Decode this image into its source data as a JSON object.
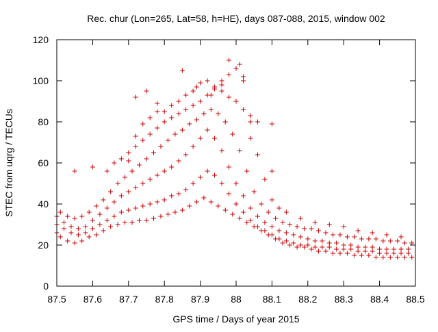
{
  "chart_data": {
    "type": "scatter",
    "title": "Rec. chur (Lon=265, Lat=58, h=HE), days 087-088, 2015, window 002",
    "xlabel": "GPS time / Days of year 2015",
    "ylabel": "STEC from uqrg / TECUs",
    "xlim": [
      87.5,
      88.5
    ],
    "ylim": [
      0,
      120
    ],
    "xticks": [
      87.5,
      87.6,
      87.7,
      87.8,
      87.9,
      88.0,
      88.1,
      88.2,
      88.3,
      88.4,
      88.5
    ],
    "xtick_labels": [
      "87.5",
      "87.6",
      "87.7",
      "87.8",
      "87.9",
      "88",
      "88.1",
      "88.2",
      "88.3",
      "88.4",
      "88.5"
    ],
    "yticks": [
      0,
      20,
      40,
      60,
      80,
      100,
      120
    ],
    "ytick_labels": [
      "0",
      "20",
      "40",
      "60",
      "80",
      "100",
      "120"
    ],
    "grid": false,
    "marker": "plus",
    "color": "#cc0000",
    "series": [
      {
        "x": [
          87.5,
          87.51,
          87.53,
          87.55,
          87.57,
          87.59,
          87.61,
          87.63,
          87.65,
          87.67,
          87.69,
          87.71,
          87.73,
          87.75,
          87.77,
          87.79,
          87.81,
          87.83,
          87.85,
          87.87,
          87.89,
          87.91,
          87.93,
          87.95,
          87.97,
          87.99,
          88.01,
          88.03,
          88.05,
          88.07,
          88.09,
          88.11,
          88.13,
          88.15,
          88.17,
          88.19,
          88.21,
          88.23,
          88.25,
          88.27,
          88.29,
          88.31,
          88.33,
          88.35,
          88.37,
          88.39,
          88.41,
          88.43,
          88.45,
          88.47,
          88.49,
          87.5,
          87.52,
          87.54,
          87.56,
          87.58,
          87.6,
          87.62,
          87.64,
          87.66,
          87.68,
          87.7,
          87.72,
          87.74,
          87.76,
          87.78,
          87.8,
          87.82,
          87.84,
          87.86,
          87.88,
          87.9,
          87.92,
          87.94,
          87.96,
          87.98,
          88.0,
          88.02,
          88.04,
          88.06,
          88.08,
          88.1,
          88.12,
          88.14,
          88.16,
          88.18,
          88.2,
          88.22,
          88.24,
          88.26,
          88.28,
          88.3,
          88.32,
          88.34,
          88.36,
          88.38,
          88.4,
          88.42,
          88.44,
          88.46,
          88.48,
          87.5,
          87.52,
          87.54,
          87.56,
          87.58,
          87.6,
          87.62,
          87.64,
          87.66,
          87.68,
          87.7,
          87.72,
          87.74,
          87.76,
          87.78,
          87.8,
          87.82,
          87.84,
          87.86,
          87.88,
          87.9,
          87.92,
          87.94,
          87.96,
          87.98,
          88.0,
          88.02,
          88.04,
          88.06,
          88.08,
          88.1,
          88.12,
          88.14,
          88.16,
          88.18,
          88.2,
          88.22,
          88.24,
          88.26,
          88.28,
          88.3,
          88.32,
          88.34,
          88.36,
          88.38,
          88.4,
          88.42,
          88.44,
          88.46,
          88.48,
          87.51,
          87.53,
          87.55,
          87.57,
          87.59,
          87.61,
          87.63,
          87.65,
          87.67,
          87.69,
          87.71,
          87.73,
          87.75,
          87.77,
          87.79,
          87.81,
          87.83,
          87.85,
          87.87,
          87.89,
          87.91,
          87.93,
          87.95,
          87.97,
          87.99,
          88.01,
          88.03,
          88.05,
          88.07,
          88.09,
          88.11,
          88.13,
          88.15,
          88.17,
          88.19,
          88.21,
          88.23,
          88.25,
          88.27,
          88.29,
          88.31,
          88.33,
          88.35,
          88.37,
          88.39,
          88.41,
          88.43,
          88.45,
          88.47,
          88.49,
          87.55,
          87.6,
          87.64,
          87.66,
          87.68,
          87.7,
          87.72,
          87.74,
          87.76,
          87.78,
          87.8,
          87.82,
          87.84,
          87.86,
          87.88,
          87.9,
          87.92,
          87.94,
          87.96,
          87.98,
          88.0,
          88.02,
          88.04,
          88.06,
          88.08,
          88.1,
          88.12,
          88.14,
          88.18,
          88.22,
          88.26,
          88.3,
          88.34,
          88.38,
          88.42,
          88.46,
          87.7,
          87.72,
          87.74,
          87.76,
          87.78,
          87.8,
          87.82,
          87.84,
          87.86,
          87.88,
          87.9,
          87.92,
          87.94,
          87.96,
          87.98,
          88.0,
          88.02,
          88.04,
          88.06,
          88.1,
          87.72,
          87.75,
          87.78,
          87.85,
          87.89,
          87.93,
          87.96,
          87.98,
          88.01,
          88.02,
          88.04,
          88.1
        ],
        "y": [
          26,
          24,
          22,
          21,
          22,
          24,
          25,
          27,
          29,
          30,
          31,
          31,
          32,
          32,
          33,
          34,
          35,
          36,
          37,
          39,
          41,
          43,
          41,
          39,
          37,
          35,
          33,
          31,
          29,
          27,
          25,
          23,
          21,
          20,
          19,
          19,
          18,
          17,
          17,
          16,
          16,
          16,
          15,
          15,
          15,
          14,
          14,
          14,
          14,
          14,
          14,
          30,
          28,
          26,
          25,
          26,
          28,
          30,
          32,
          34,
          36,
          37,
          38,
          39,
          40,
          41,
          42,
          44,
          45,
          47,
          50,
          53,
          56,
          54,
          50,
          45,
          40,
          36,
          32,
          29,
          27,
          25,
          23,
          22,
          21,
          20,
          20,
          19,
          19,
          19,
          18,
          18,
          18,
          17,
          17,
          17,
          16,
          16,
          16,
          16,
          16,
          34,
          31,
          29,
          28,
          29,
          32,
          35,
          38,
          41,
          44,
          46,
          48,
          50,
          52,
          54,
          56,
          58,
          61,
          64,
          68,
          72,
          76,
          72,
          66,
          58,
          50,
          44,
          38,
          34,
          31,
          29,
          27,
          26,
          25,
          24,
          23,
          22,
          22,
          21,
          21,
          20,
          20,
          19,
          19,
          19,
          18,
          18,
          18,
          18,
          18,
          36,
          34,
          33,
          34,
          36,
          39,
          42,
          46,
          50,
          53,
          56,
          59,
          62,
          65,
          68,
          71,
          74,
          76,
          79,
          81,
          84,
          86,
          84,
          80,
          74,
          66,
          56,
          46,
          40,
          36,
          33,
          31,
          30,
          29,
          28,
          28,
          27,
          26,
          25,
          25,
          24,
          24,
          23,
          23,
          23,
          22,
          22,
          22,
          21,
          21,
          56,
          58,
          56,
          60,
          62,
          65,
          68,
          71,
          74,
          77,
          80,
          82,
          84,
          86,
          88,
          90,
          93,
          96,
          100,
          103,
          106,
          102,
          80,
          64,
          52,
          42,
          38,
          36,
          33,
          31,
          30,
          29,
          27,
          26,
          25,
          24,
          61,
          73,
          79,
          82,
          85,
          85,
          88,
          90,
          93,
          95,
          99,
          100,
          97,
          95,
          92,
          90,
          86,
          83,
          80,
          79,
          92,
          95,
          89,
          105,
          97,
          93,
          98,
          110,
          108,
          100,
          72,
          56
        ]
      }
    ]
  }
}
